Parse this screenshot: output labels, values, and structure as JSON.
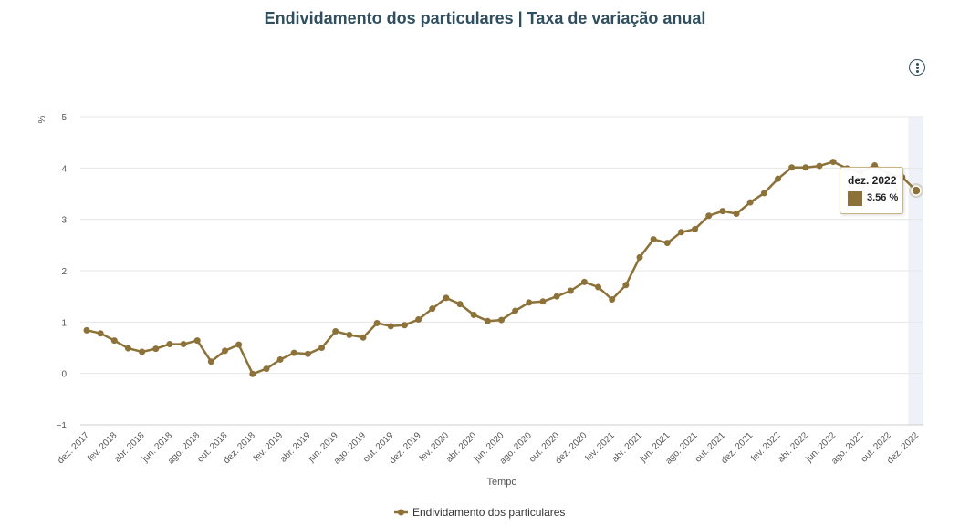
{
  "title": "Endividamento dos particulares | Taxa de variação anual",
  "menu_icon": "vertical-dots-icon",
  "tooltip": {
    "date": "dez. 2022",
    "value": "3.56 %"
  },
  "colors": {
    "series": "#8c7238",
    "title": "#2f4f60",
    "highlight_band": "#eef1f8",
    "grid": "#e6e6e6"
  },
  "chart_data": {
    "type": "line",
    "title": "Endividamento dos particulares | Taxa de variação anual",
    "xlabel": "Tempo",
    "ylabel": "%",
    "ylim": [
      -1,
      5
    ],
    "yticks": [
      "5",
      "4",
      "3",
      "2",
      "1",
      "0",
      "−1"
    ],
    "ytick_values": [
      5,
      4,
      3,
      2,
      1,
      0,
      -1
    ],
    "grid": true,
    "legend_position": "bottom-center",
    "x_tick_labels": [
      "dez. 2017",
      "fev. 2018",
      "abr. 2018",
      "jun. 2018",
      "ago. 2018",
      "out. 2018",
      "dez. 2018",
      "fev. 2019",
      "abr. 2019",
      "jun. 2019",
      "ago. 2019",
      "out. 2019",
      "dez. 2019",
      "fev. 2020",
      "abr. 2020",
      "jun. 2020",
      "ago. 2020",
      "out. 2020",
      "dez. 2020",
      "fev. 2021",
      "abr. 2021",
      "jun. 2021",
      "ago. 2021",
      "out. 2021",
      "dez. 2021",
      "fev. 2022",
      "abr. 2022",
      "jun. 2022",
      "ago. 2022",
      "out. 2022",
      "dez. 2022"
    ],
    "highlighted_point": "dez. 2022",
    "series": [
      {
        "name": "Endividamento dos particulares",
        "color": "#8c7238",
        "values": [
          0.84,
          0.78,
          0.64,
          0.49,
          0.42,
          0.48,
          0.57,
          0.57,
          0.64,
          0.23,
          0.44,
          0.56,
          -0.01,
          0.09,
          0.27,
          0.4,
          0.38,
          0.5,
          0.82,
          0.75,
          0.7,
          0.98,
          0.92,
          0.94,
          1.05,
          1.26,
          1.47,
          1.35,
          1.14,
          1.02,
          1.04,
          1.22,
          1.38,
          1.4,
          1.5,
          1.61,
          1.78,
          1.68,
          1.44,
          1.72,
          2.26,
          2.61,
          2.54,
          2.75,
          2.81,
          3.07,
          3.16,
          3.11,
          3.33,
          3.51,
          3.79,
          4.01,
          4.01,
          4.04,
          4.12,
          3.99,
          3.92,
          4.05,
          3.88,
          3.82,
          3.56
        ]
      }
    ]
  }
}
